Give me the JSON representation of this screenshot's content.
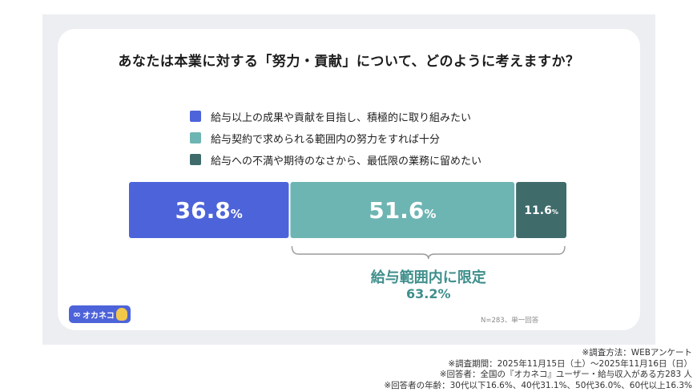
{
  "title": "あなたは本業に対する「努力・貢献」について、どのように考えますか？",
  "chart_data": {
    "type": "bar",
    "orientation": "horizontal-stacked",
    "categories": [
      "給与以上の成果や貢献を目指し、積極的に取り組みたい",
      "給与契約で求められる範囲内の努力をすれば十分",
      "給与への不満や期待のなさから、最低限の業務に留めたい"
    ],
    "values": [
      36.8,
      51.6,
      11.6
    ],
    "value_labels": [
      "36.8",
      "51.6",
      "11.6"
    ],
    "unit": "%",
    "colors": [
      "#4d63d9",
      "#6db5b2",
      "#3f6b6b"
    ],
    "legend_placement": "top",
    "bracket": {
      "label": "給与範囲内に限定",
      "value": "63.2%",
      "covers": [
        1,
        2
      ]
    }
  },
  "footnote": "N=283、単一回答",
  "logo": {
    "mark": "∞",
    "text": "オカネコ"
  },
  "notes": [
    "※調査方法：WEBアンケート",
    "※調査期間：2025年11月15日（土）〜2025年11月16日（日）",
    "※回答者：全国の『オカネコ』ユーザー・給与収入がある方283 人",
    "※回答者の年齢：30代以下16.6%、40代31.1%、50代36.0%、60代以上16.3%"
  ]
}
